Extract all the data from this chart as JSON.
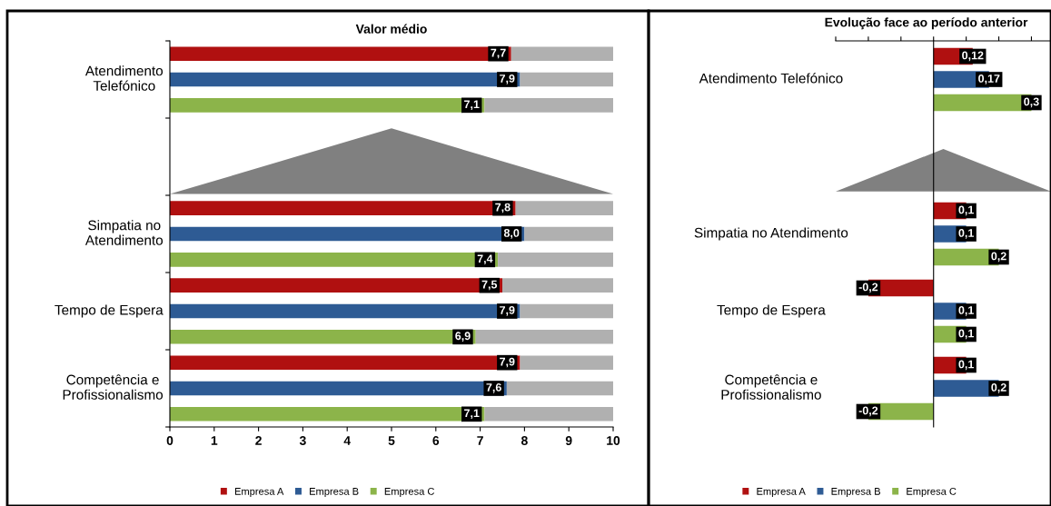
{
  "chart_data": [
    {
      "type": "bar",
      "orientation": "horizontal",
      "stacked": true,
      "title": "Valor médio",
      "categories": [
        null,
        "Atendimento\nTelefónico",
        null,
        null,
        null,
        null,
        null,
        "Simpatia no\nAtendimento",
        null,
        null,
        "Tempo de Espera",
        null,
        null,
        "Competência e\nProfissionalismo",
        null
      ],
      "series": [
        {
          "name": "Empresa A",
          "color": "#b01010",
          "values": [
            7.7,
            null,
            null,
            null,
            null,
            null,
            7.8,
            null,
            null,
            7.5,
            null,
            null,
            7.9,
            null,
            null
          ],
          "value_labels": [
            "7,7",
            null,
            null,
            null,
            null,
            null,
            "7,8",
            null,
            null,
            "7,5",
            null,
            null,
            "7,9",
            null,
            null
          ]
        },
        {
          "name": "Empresa B",
          "color": "#2e5b94",
          "values": [
            null,
            7.9,
            null,
            null,
            null,
            null,
            null,
            8.0,
            null,
            null,
            7.9,
            null,
            null,
            7.6,
            null
          ],
          "value_labels": [
            null,
            "7,9",
            null,
            null,
            null,
            null,
            null,
            "8,0",
            null,
            null,
            "7,9",
            null,
            null,
            "7,6",
            null
          ]
        },
        {
          "name": "Empresa C",
          "color": "#8cb44a",
          "values": [
            null,
            null,
            7.1,
            null,
            null,
            null,
            null,
            null,
            7.4,
            null,
            null,
            6.9,
            null,
            null,
            7.1
          ],
          "value_labels": [
            null,
            null,
            "7,1",
            null,
            null,
            null,
            null,
            null,
            "7,4",
            null,
            null,
            "6,9",
            null,
            null,
            "7,1"
          ]
        },
        {
          "color": "#b0b0b0",
          "values": [
            2.3,
            2.1,
            2.9,
            null,
            null,
            null,
            2.2,
            2.0,
            2.6,
            2.5,
            2.1,
            3.1,
            2.1,
            2.4,
            2.9
          ]
        }
      ],
      "xlim": [
        0,
        10
      ],
      "xticks": [
        0,
        1,
        2,
        3,
        4,
        5,
        6,
        7,
        8,
        9,
        10
      ],
      "grid": false,
      "legend": "bottom"
    },
    {
      "type": "bar",
      "orientation": "horizontal",
      "title": "Evolução face ao período anterior",
      "categories": [
        "Atendimento Telefónico",
        null,
        "Simpatia no Atendimento",
        "Tempo de Espera",
        "Competência e\nProfissionalismo"
      ],
      "series": [
        {
          "name": "Empresa A",
          "color": "#b01010",
          "values": [
            0.12,
            null,
            0.1,
            -0.2,
            0.1
          ],
          "value_labels": [
            "0,12",
            null,
            "0,1",
            "-0,2",
            "0,1"
          ]
        },
        {
          "name": "Empresa B",
          "color": "#2e5b94",
          "values": [
            0.17,
            null,
            0.1,
            0.1,
            0.2
          ],
          "value_labels": [
            "0,17",
            null,
            "0,1",
            "0,1",
            "0,2"
          ]
        },
        {
          "name": "Empresa C",
          "color": "#8cb44a",
          "values": [
            0.3,
            null,
            0.2,
            0.1,
            -0.2
          ],
          "value_labels": [
            "0,3",
            null,
            "0,2",
            "0,1",
            "-0,2"
          ]
        }
      ],
      "xlim": [
        -0.3,
        0.36
      ],
      "xticks": [
        {
          "value": -0.3,
          "label": null
        },
        {
          "value": -0.2,
          "label": null
        },
        {
          "value": -0.1,
          "label": null
        },
        {
          "value": 0,
          "label": null
        },
        {
          "value": 0.1,
          "label": null
        },
        {
          "value": 0.2,
          "label": null
        },
        {
          "value": 0.3,
          "label": null
        }
      ],
      "tick_labels": false,
      "grid": false,
      "legend": "bottom"
    }
  ]
}
